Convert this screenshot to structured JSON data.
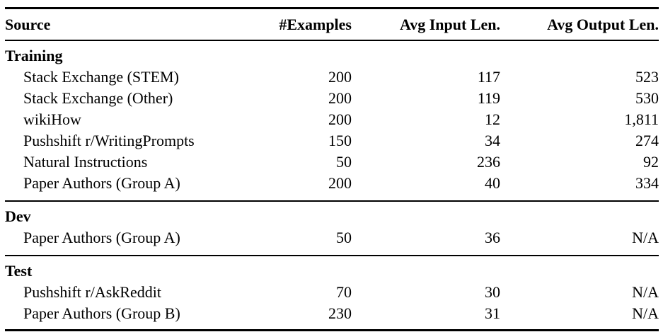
{
  "colors": {
    "text": "#000000",
    "background": "#ffffff",
    "rule": "#000000"
  },
  "table": {
    "columns": [
      "Source",
      "#Examples",
      "Avg Input Len.",
      "Avg Output Len."
    ],
    "sections": [
      {
        "label": "Training",
        "rows": [
          {
            "source": "Stack Exchange (STEM)",
            "examples": "200",
            "avg_input_len": "117",
            "avg_output_len": "523"
          },
          {
            "source": "Stack Exchange (Other)",
            "examples": "200",
            "avg_input_len": "119",
            "avg_output_len": "530"
          },
          {
            "source": "wikiHow",
            "examples": "200",
            "avg_input_len": "12",
            "avg_output_len": "1,811"
          },
          {
            "source": "Pushshift r/WritingPrompts",
            "examples": "150",
            "avg_input_len": "34",
            "avg_output_len": "274"
          },
          {
            "source": "Natural Instructions",
            "examples": "50",
            "avg_input_len": "236",
            "avg_output_len": "92"
          },
          {
            "source": "Paper Authors (Group A)",
            "examples": "200",
            "avg_input_len": "40",
            "avg_output_len": "334"
          }
        ]
      },
      {
        "label": "Dev",
        "rows": [
          {
            "source": "Paper Authors (Group A)",
            "examples": "50",
            "avg_input_len": "36",
            "avg_output_len": "N/A"
          }
        ]
      },
      {
        "label": "Test",
        "rows": [
          {
            "source": "Pushshift r/AskReddit",
            "examples": "70",
            "avg_input_len": "30",
            "avg_output_len": "N/A"
          },
          {
            "source": "Paper Authors (Group B)",
            "examples": "230",
            "avg_input_len": "31",
            "avg_output_len": "N/A"
          }
        ]
      }
    ]
  }
}
